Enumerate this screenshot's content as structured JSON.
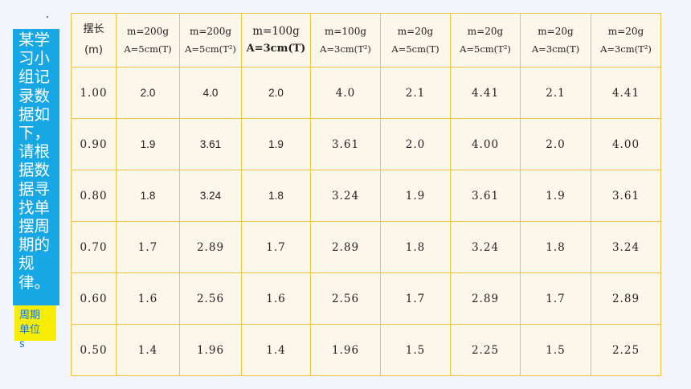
{
  "prompt": "某学习小组记录数据如下，请根据数据寻找单摆周期的规律。",
  "unit_note": "周期单位s",
  "table": {
    "length_header": {
      "top": "摆长",
      "bottom": "(m)"
    },
    "columns": [
      {
        "top": "m=200g",
        "bottom": "A=5cm(T)"
      },
      {
        "top": "m=200g",
        "bottom": "A=5cm(T²)"
      },
      {
        "top": "m=100g",
        "bottom": "A=3cm(T)"
      },
      {
        "top": "m=100g",
        "bottom": "A=3cm(T²)"
      },
      {
        "top": "m=20g",
        "bottom": "A=5cm(T)"
      },
      {
        "top": "m=20g",
        "bottom": "A=5cm(T²)"
      },
      {
        "top": "m=20g",
        "bottom": "A=3cm(T)"
      },
      {
        "top": "m=20g",
        "bottom": "A=3cm(T²)"
      }
    ],
    "rows": [
      {
        "length": "1.00",
        "values": [
          "2.0",
          "4.0",
          "2.0",
          "4.0",
          "2.1",
          "4.41",
          "2.1",
          "4.41"
        ]
      },
      {
        "length": "0.90",
        "values": [
          "1.9",
          "3.61",
          "1.9",
          "3.61",
          "2.0",
          "4.00",
          "2.0",
          "4.00"
        ]
      },
      {
        "length": "0.80",
        "values": [
          "1.8",
          "3.24",
          "1.8",
          "3.24",
          "1.9",
          "3.61",
          "1.9",
          "3.61"
        ]
      },
      {
        "length": "0.70",
        "values": [
          "1.7",
          "2.89",
          "1.7",
          "2.89",
          "1.8",
          "3.24",
          "1.8",
          "3.24"
        ]
      },
      {
        "length": "0.60",
        "values": [
          "1.6",
          "2.56",
          "1.6",
          "2.56",
          "1.7",
          "2.89",
          "1.7",
          "2.89"
        ]
      },
      {
        "length": "0.50",
        "values": [
          "1.4",
          "1.96",
          "1.4",
          "1.96",
          "1.5",
          "2.25",
          "1.5",
          "2.25"
        ]
      }
    ]
  },
  "colors": {
    "side_note_bg": "#17a7e5",
    "unit_note_bg": "#f5ed05",
    "unit_note_text": "#1677d8",
    "table_bg": "#fcf7ea",
    "table_border": "#f2c241",
    "page_bg": "#f2f5fb"
  }
}
